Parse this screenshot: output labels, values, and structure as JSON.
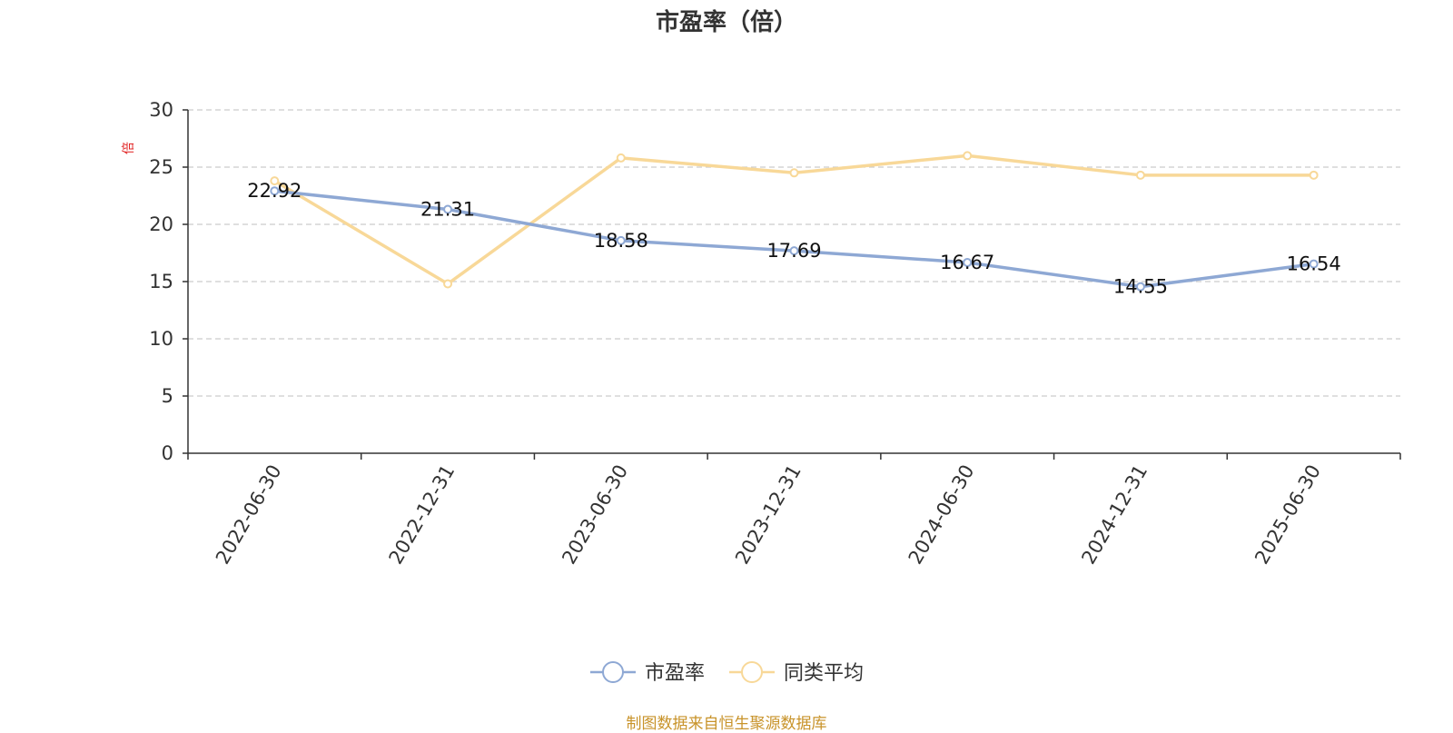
{
  "page": {
    "title": "市盈率（倍）",
    "footer": "制图数据来自恒生聚源数据库"
  },
  "colors": {
    "series_pe": "#8ea8d4",
    "series_avg": "#f8d898",
    "unit_label": "#e02020",
    "footer": "#c8932a",
    "grid": "#cccccc",
    "axis": "#333333"
  },
  "chart_data": {
    "type": "line",
    "title": "市盈率（倍）",
    "ylabel": "倍",
    "ylim": [
      0,
      30
    ],
    "yticks": [
      0,
      5,
      10,
      15,
      20,
      25,
      30
    ],
    "grid": "horizontal-dashed",
    "legend_position": "bottom-center",
    "categories": [
      "2022-06-30",
      "2022-12-31",
      "2023-06-30",
      "2023-12-31",
      "2024-06-30",
      "2024-12-31",
      "2025-06-30"
    ],
    "series": [
      {
        "name": "市盈率",
        "color": "#8ea8d4",
        "values": [
          22.92,
          21.31,
          18.58,
          17.69,
          16.67,
          14.55,
          16.54
        ],
        "data_labels": [
          "22.92",
          "21.31",
          "18.58",
          "17.69",
          "16.67",
          "14.55",
          "16.54"
        ]
      },
      {
        "name": "同类平均",
        "color": "#f8d898",
        "values": [
          23.8,
          14.8,
          25.8,
          24.5,
          26.0,
          24.3,
          24.3
        ]
      }
    ]
  }
}
